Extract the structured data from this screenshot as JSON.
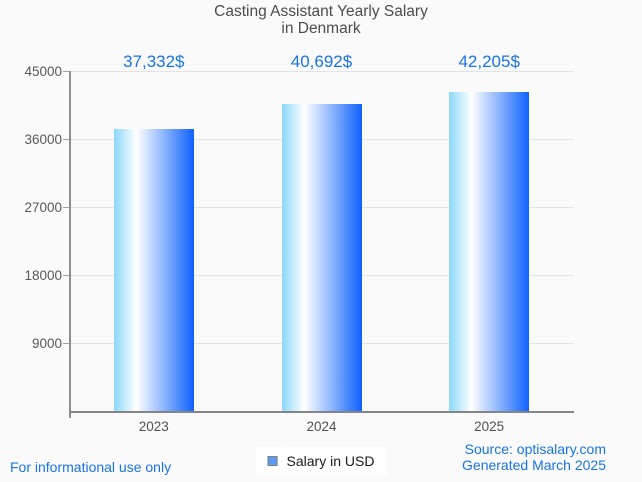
{
  "title": {
    "line1": "Casting Assistant Yearly Salary",
    "line2": "in Denmark"
  },
  "chart_data": {
    "type": "bar",
    "title": "Casting Assistant Yearly Salary in Denmark",
    "categories": [
      "2023",
      "2024",
      "2025"
    ],
    "values": [
      37332,
      40692,
      42205
    ],
    "value_labels": [
      "37,332$",
      "40,692$",
      "42,205$"
    ],
    "series_name": "Salary in USD",
    "xlabel": "",
    "ylabel": "",
    "ylim": [
      0,
      45000
    ],
    "yticks": [
      9000,
      18000,
      27000,
      36000,
      45000
    ],
    "grid": true,
    "legend_position": "bottom-center",
    "bar_gradient": [
      "#8bd7fb",
      "#ffffff",
      "#0e62fe"
    ]
  },
  "footer": {
    "left_note": "For informational use only",
    "source_line1": "Source: optisalary.com",
    "source_line2": "Generated March 2025"
  },
  "colors": {
    "background": "#fafafa",
    "accent_blue": "#1a73e8",
    "title_gray": "#4d4d4d",
    "axis_gray": "#8f8f8f",
    "gridline_gray": "#e3e3e3",
    "tick_label_gray": "#58585a",
    "legend_swatch_fill": "#5b9bf5",
    "legend_swatch_border": "#7d7d7d"
  }
}
